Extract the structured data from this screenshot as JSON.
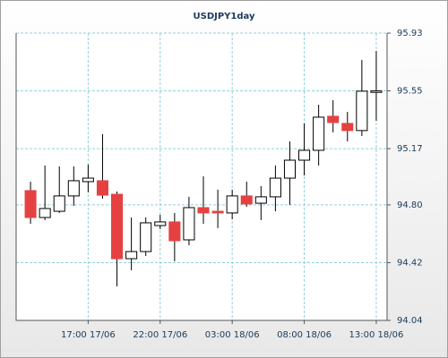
{
  "chart_data": {
    "type": "candlestick",
    "title": "USDJPY1day",
    "categories": [
      null,
      null,
      null,
      null,
      "17:00 17/06",
      null,
      null,
      null,
      null,
      "22:00 17/06",
      null,
      null,
      null,
      null,
      "03:00 18/06",
      null,
      null,
      null,
      null,
      "08:00 18/06",
      null,
      null,
      null,
      null,
      "13:00 18/06"
    ],
    "open": [
      94.894,
      94.717,
      94.758,
      94.859,
      94.953,
      94.959,
      94.87,
      94.446,
      94.493,
      94.664,
      94.688,
      94.57,
      94.782,
      94.758,
      94.747,
      94.859,
      94.811,
      94.853,
      94.976,
      95.094,
      95.159,
      95.383,
      95.336,
      95.289,
      95.54
    ],
    "high": [
      94.953,
      95.059,
      95.053,
      95.053,
      95.065,
      95.265,
      94.888,
      94.717,
      94.717,
      94.735,
      94.747,
      94.853,
      94.988,
      94.9,
      94.9,
      94.953,
      94.923,
      95.059,
      95.218,
      95.336,
      95.459,
      95.489,
      95.412,
      95.754,
      95.813
    ],
    "low": [
      94.676,
      94.7,
      94.747,
      94.794,
      94.882,
      94.841,
      94.264,
      94.37,
      94.464,
      94.641,
      94.429,
      94.535,
      94.676,
      94.647,
      94.705,
      94.788,
      94.7,
      94.758,
      94.8,
      94.994,
      95.059,
      95.277,
      95.218,
      95.253,
      95.353
    ],
    "close": [
      94.717,
      94.776,
      94.859,
      94.959,
      94.976,
      94.864,
      94.446,
      94.493,
      94.682,
      94.688,
      94.564,
      94.782,
      94.747,
      94.747,
      94.859,
      94.806,
      94.853,
      94.976,
      95.094,
      95.159,
      95.377,
      95.342,
      95.289,
      95.548,
      95.55
    ],
    "up_color": "#ffffff",
    "down_color": "#e64141",
    "ylim": [
      94.04,
      95.93
    ],
    "yticks": [
      94.04,
      94.42,
      {
        "value": 94.8,
        "label": "94.80"
      },
      95.17,
      95.55,
      95.93
    ],
    "grid": true
  }
}
